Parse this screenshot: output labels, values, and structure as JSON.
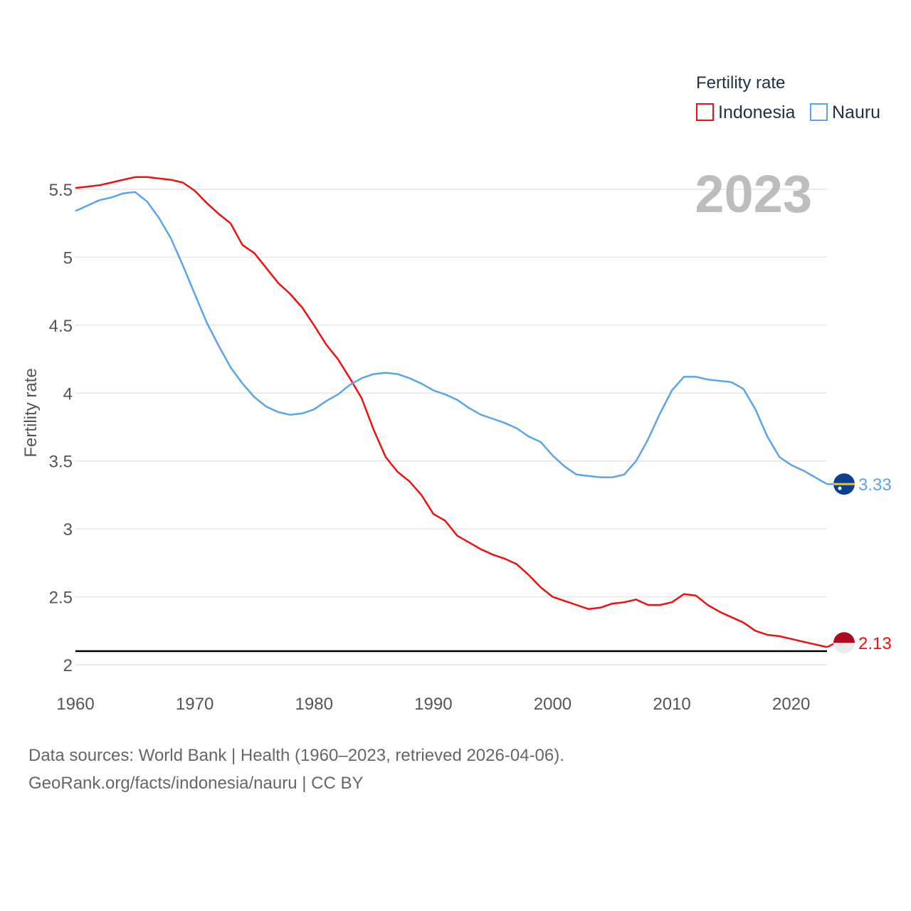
{
  "colors": {
    "indonesia": "#ee1111",
    "nauru": "#5ca4e8",
    "grid": "#e6e6e6",
    "reference_line": "#000000"
  },
  "footer": {
    "line1": "Data sources: World Bank | Health (1960–2023, retrieved 2026-04-06).",
    "line2": "GeoRank.org/facts/indonesia/nauru | CC BY"
  },
  "chart_data": {
    "type": "line",
    "title": "",
    "year_label": "2023",
    "legend_title": "Fertility rate",
    "xlabel": "",
    "ylabel": "Fertility rate",
    "xlim": [
      1960,
      2023
    ],
    "ylim": [
      2,
      5.5
    ],
    "x_ticks": [
      1960,
      1970,
      1980,
      1990,
      2000,
      2010,
      2020
    ],
    "y_ticks": [
      {
        "value": 2,
        "label": "2"
      },
      {
        "value": 2.5,
        "label": "2.5"
      },
      {
        "value": 3,
        "label": "3"
      },
      {
        "value": 3.5,
        "label": "3.5"
      },
      {
        "value": 4,
        "label": "4"
      },
      {
        "value": 4.5,
        "label": "4.5"
      },
      {
        "value": 5,
        "label": "5"
      },
      {
        "value": 5.5,
        "label": "5.5"
      }
    ],
    "reference_line": 2.1,
    "x": [
      1960,
      1961,
      1962,
      1963,
      1964,
      1965,
      1966,
      1967,
      1968,
      1969,
      1970,
      1971,
      1972,
      1973,
      1974,
      1975,
      1976,
      1977,
      1978,
      1979,
      1980,
      1981,
      1982,
      1983,
      1984,
      1985,
      1986,
      1987,
      1988,
      1989,
      1990,
      1991,
      1992,
      1993,
      1994,
      1995,
      1996,
      1997,
      1998,
      1999,
      2000,
      2001,
      2002,
      2003,
      2004,
      2005,
      2006,
      2007,
      2008,
      2009,
      2010,
      2011,
      2012,
      2013,
      2014,
      2015,
      2016,
      2017,
      2018,
      2019,
      2020,
      2021,
      2022,
      2023
    ],
    "series": [
      {
        "name": "Indonesia",
        "color_key": "indonesia",
        "end_label": "2.13",
        "values": [
          5.51,
          5.52,
          5.53,
          5.55,
          5.57,
          5.59,
          5.59,
          5.58,
          5.57,
          5.55,
          5.49,
          5.4,
          5.32,
          5.25,
          5.09,
          5.03,
          4.92,
          4.81,
          4.73,
          4.63,
          4.5,
          4.36,
          4.25,
          4.11,
          3.96,
          3.73,
          3.53,
          3.42,
          3.35,
          3.25,
          3.11,
          3.06,
          2.95,
          2.9,
          2.85,
          2.81,
          2.78,
          2.74,
          2.66,
          2.57,
          2.5,
          2.47,
          2.44,
          2.41,
          2.42,
          2.45,
          2.46,
          2.48,
          2.44,
          2.44,
          2.46,
          2.52,
          2.51,
          2.44,
          2.39,
          2.35,
          2.31,
          2.25,
          2.22,
          2.21,
          2.19,
          2.17,
          2.15,
          2.13
        ]
      },
      {
        "name": "Nauru",
        "color_key": "nauru",
        "end_label": "3.33",
        "values": [
          5.34,
          5.38,
          5.42,
          5.44,
          5.47,
          5.48,
          5.41,
          5.29,
          5.14,
          4.94,
          4.73,
          4.52,
          4.35,
          4.19,
          4.07,
          3.97,
          3.9,
          3.86,
          3.84,
          3.85,
          3.88,
          3.94,
          3.99,
          4.06,
          4.11,
          4.14,
          4.15,
          4.14,
          4.11,
          4.07,
          4.02,
          3.99,
          3.95,
          3.89,
          3.84,
          3.81,
          3.78,
          3.74,
          3.68,
          3.64,
          3.54,
          3.46,
          3.4,
          3.39,
          3.38,
          3.38,
          3.4,
          3.5,
          3.66,
          3.85,
          4.02,
          4.12,
          4.12,
          4.1,
          4.09,
          4.08,
          4.03,
          3.88,
          3.68,
          3.53,
          3.47,
          3.43,
          3.38,
          3.33
        ]
      }
    ]
  }
}
